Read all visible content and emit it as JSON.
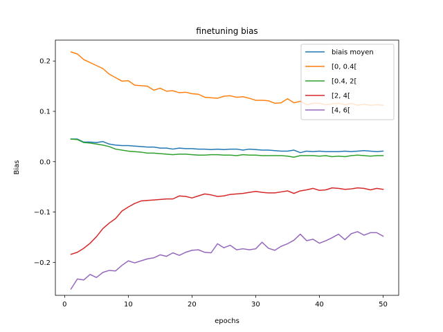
{
  "chart_data": {
    "type": "line",
    "title": "finetuning bias",
    "xlabel": "epochs",
    "ylabel": "Bias",
    "xlim": [
      -1.45,
      52.45
    ],
    "ylim": [
      -0.2655,
      0.2415
    ],
    "xticks": [
      0,
      10,
      20,
      30,
      40,
      50
    ],
    "yticks": [
      -0.2,
      -0.1,
      0.0,
      0.1,
      0.2
    ],
    "ytick_labels": [
      "−0.2",
      "−0.1",
      "0.0",
      "0.1",
      "0.2"
    ],
    "legend_position": "top-right",
    "grid": false,
    "x": [
      1,
      2,
      3,
      4,
      5,
      6,
      7,
      8,
      9,
      10,
      11,
      12,
      13,
      14,
      15,
      16,
      17,
      18,
      19,
      20,
      21,
      22,
      23,
      24,
      25,
      26,
      27,
      28,
      29,
      30,
      31,
      32,
      33,
      34,
      35,
      36,
      37,
      38,
      39,
      40,
      41,
      42,
      43,
      44,
      45,
      46,
      47,
      48,
      49,
      50
    ],
    "series": [
      {
        "name": "biais moyen",
        "color": "#1f77b4",
        "values": [
          0.045,
          0.045,
          0.039,
          0.039,
          0.038,
          0.04,
          0.035,
          0.033,
          0.032,
          0.032,
          0.031,
          0.03,
          0.029,
          0.029,
          0.027,
          0.027,
          0.025,
          0.027,
          0.026,
          0.026,
          0.025,
          0.025,
          0.024,
          0.025,
          0.024,
          0.025,
          0.025,
          0.023,
          0.025,
          0.024,
          0.023,
          0.023,
          0.022,
          0.021,
          0.021,
          0.023,
          0.018,
          0.021,
          0.02,
          0.021,
          0.02,
          0.02,
          0.02,
          0.021,
          0.02,
          0.021,
          0.022,
          0.021,
          0.02,
          0.021
        ]
      },
      {
        "name": "[0, 0.4[",
        "color": "#ff7f0e",
        "values": [
          0.218,
          0.214,
          0.203,
          0.197,
          0.191,
          0.185,
          0.174,
          0.167,
          0.16,
          0.161,
          0.152,
          0.151,
          0.15,
          0.142,
          0.146,
          0.14,
          0.141,
          0.137,
          0.138,
          0.135,
          0.134,
          0.128,
          0.127,
          0.126,
          0.13,
          0.131,
          0.128,
          0.129,
          0.126,
          0.122,
          0.122,
          0.121,
          0.116,
          0.117,
          0.125,
          0.117,
          0.12,
          0.113,
          0.116,
          0.116,
          0.113,
          0.115,
          0.116,
          0.113,
          0.116,
          0.112,
          0.114,
          0.112,
          0.113,
          0.112
        ]
      },
      {
        "name": "[0.4, 2[",
        "color": "#2ca02c",
        "values": [
          0.045,
          0.044,
          0.038,
          0.037,
          0.035,
          0.033,
          0.03,
          0.025,
          0.023,
          0.021,
          0.02,
          0.019,
          0.017,
          0.017,
          0.016,
          0.015,
          0.014,
          0.015,
          0.015,
          0.014,
          0.013,
          0.013,
          0.014,
          0.014,
          0.013,
          0.013,
          0.012,
          0.014,
          0.013,
          0.013,
          0.012,
          0.012,
          0.012,
          0.012,
          0.011,
          0.009,
          0.012,
          0.012,
          0.012,
          0.011,
          0.012,
          0.01,
          0.011,
          0.01,
          0.012,
          0.013,
          0.012,
          0.011,
          0.012,
          0.012
        ]
      },
      {
        "name": "[2, 4[",
        "color": "#d62728",
        "values": [
          -0.184,
          -0.18,
          -0.172,
          -0.162,
          -0.149,
          -0.133,
          -0.122,
          -0.113,
          -0.098,
          -0.09,
          -0.083,
          -0.078,
          -0.077,
          -0.076,
          -0.075,
          -0.074,
          -0.074,
          -0.068,
          -0.069,
          -0.072,
          -0.068,
          -0.064,
          -0.066,
          -0.069,
          -0.068,
          -0.065,
          -0.064,
          -0.063,
          -0.061,
          -0.059,
          -0.061,
          -0.062,
          -0.062,
          -0.06,
          -0.058,
          -0.063,
          -0.058,
          -0.056,
          -0.053,
          -0.057,
          -0.056,
          -0.052,
          -0.053,
          -0.055,
          -0.054,
          -0.052,
          -0.053,
          -0.056,
          -0.053,
          -0.055
        ]
      },
      {
        "name": "[4, 6[",
        "color": "#9467bd",
        "values": [
          -0.253,
          -0.233,
          -0.235,
          -0.224,
          -0.23,
          -0.22,
          -0.216,
          -0.217,
          -0.206,
          -0.197,
          -0.201,
          -0.197,
          -0.193,
          -0.191,
          -0.185,
          -0.188,
          -0.181,
          -0.186,
          -0.18,
          -0.176,
          -0.175,
          -0.18,
          -0.181,
          -0.163,
          -0.171,
          -0.166,
          -0.175,
          -0.173,
          -0.175,
          -0.173,
          -0.16,
          -0.172,
          -0.176,
          -0.168,
          -0.163,
          -0.156,
          -0.144,
          -0.157,
          -0.154,
          -0.162,
          -0.157,
          -0.151,
          -0.144,
          -0.155,
          -0.143,
          -0.139,
          -0.146,
          -0.141,
          -0.141,
          -0.148
        ]
      }
    ]
  }
}
